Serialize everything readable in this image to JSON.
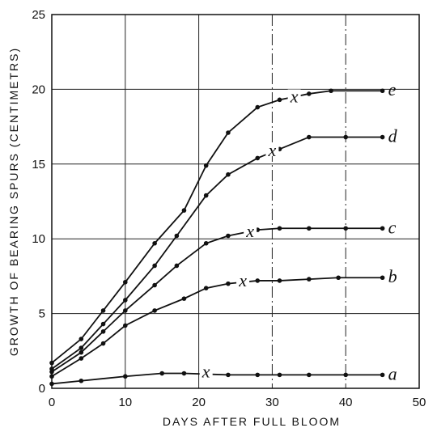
{
  "chart_data": {
    "type": "line",
    "xlabel": "DAYS AFTER FULL BLOOM",
    "ylabel": "GROWTH OF BEARING SPURS (CENTIMETRS)",
    "xlim": [
      0,
      50
    ],
    "ylim": [
      0,
      25
    ],
    "xticks": [
      0,
      10,
      20,
      30,
      40,
      50
    ],
    "yticks": [
      0,
      5,
      10,
      15,
      20,
      25
    ],
    "grid": true,
    "marker_text": "x",
    "series": [
      {
        "name": "a",
        "x": [
          0,
          4,
          10,
          15,
          18,
          24,
          28,
          31,
          35,
          40,
          45
        ],
        "y": [
          0.3,
          0.5,
          0.8,
          1.0,
          1.0,
          0.9,
          0.9,
          0.9,
          0.9,
          0.9,
          0.9
        ],
        "marker_x": 21,
        "marker_y": 1.0
      },
      {
        "name": "b",
        "x": [
          0,
          4,
          7,
          10,
          14,
          18,
          21,
          24,
          28,
          31,
          35,
          39,
          45
        ],
        "y": [
          0.8,
          2.0,
          3.0,
          4.2,
          5.2,
          6.0,
          6.7,
          7.0,
          7.2,
          7.2,
          7.3,
          7.4,
          7.4
        ],
        "marker_x": 26,
        "marker_y": 7.1
      },
      {
        "name": "c",
        "x": [
          0,
          4,
          7,
          10,
          14,
          17,
          21,
          24,
          28,
          31,
          35,
          40,
          45
        ],
        "y": [
          1.1,
          2.4,
          3.8,
          5.2,
          6.9,
          8.2,
          9.7,
          10.2,
          10.6,
          10.7,
          10.7,
          10.7,
          10.7
        ],
        "marker_x": 27,
        "marker_y": 10.4
      },
      {
        "name": "d",
        "x": [
          0,
          4,
          7,
          10,
          14,
          17,
          21,
          24,
          28,
          31,
          35,
          40,
          45
        ],
        "y": [
          1.3,
          2.7,
          4.3,
          5.9,
          8.2,
          10.2,
          12.9,
          14.3,
          15.4,
          16.0,
          16.8,
          16.8,
          16.8
        ],
        "marker_x": 30,
        "marker_y": 15.8
      },
      {
        "name": "e",
        "x": [
          0,
          4,
          7,
          10,
          14,
          18,
          21,
          24,
          28,
          31,
          35,
          38,
          45
        ],
        "y": [
          1.7,
          3.3,
          5.2,
          7.1,
          9.7,
          11.9,
          14.9,
          17.1,
          18.8,
          19.3,
          19.7,
          19.9,
          19.9
        ],
        "marker_x": 33,
        "marker_y": 19.4
      }
    ]
  }
}
